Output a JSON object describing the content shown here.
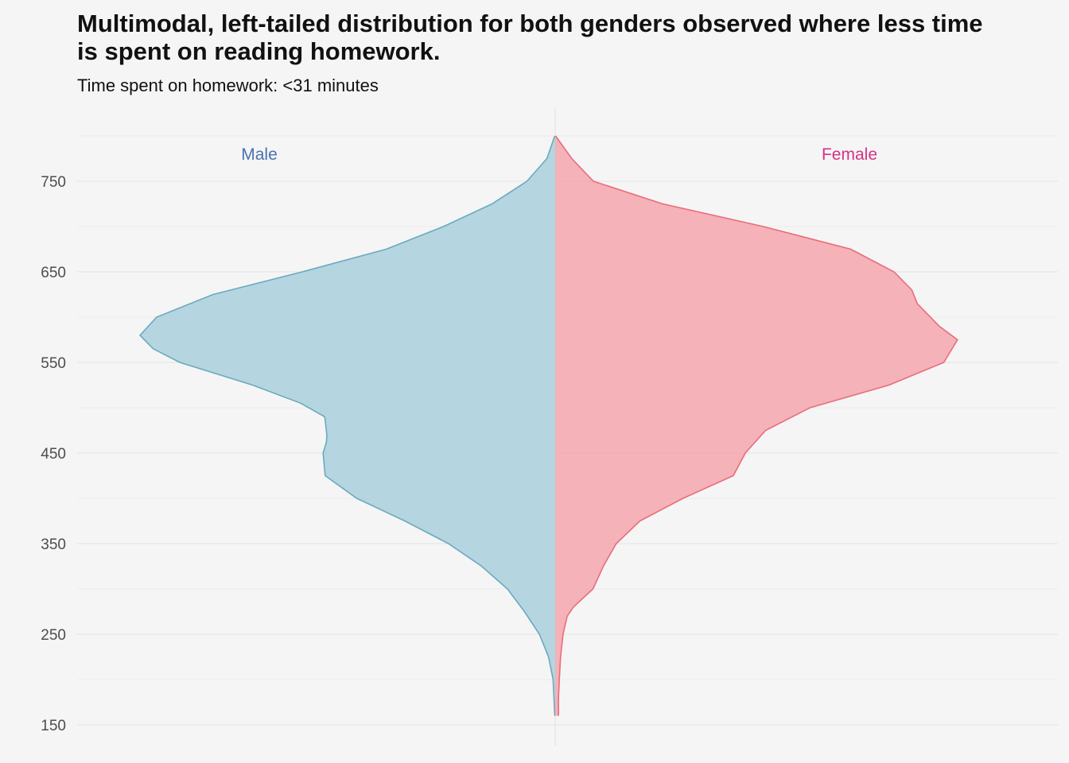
{
  "title": "Multimodal, left-tailed distribution for both genders observed where less time is spent on reading homework.",
  "subtitle": "Time spent on homework: <31 minutes",
  "chart_data": {
    "type": "area",
    "subtype": "mirrored density (violin)",
    "ylim": [
      145,
      802
    ],
    "y_ticks": [
      150,
      250,
      350,
      450,
      550,
      650,
      750
    ],
    "grid": true,
    "density_max": 1.0,
    "series": [
      {
        "name": "Male",
        "side": "left",
        "label_color": "#4a72b0",
        "fill": "#a9cfdc",
        "stroke": "#6aaac0",
        "points": [
          [
            160,
            0.001
          ],
          [
            180,
            0.003
          ],
          [
            200,
            0.005
          ],
          [
            225,
            0.016
          ],
          [
            250,
            0.038
          ],
          [
            275,
            0.074
          ],
          [
            300,
            0.115
          ],
          [
            325,
            0.177
          ],
          [
            350,
            0.257
          ],
          [
            375,
            0.362
          ],
          [
            400,
            0.478
          ],
          [
            425,
            0.554
          ],
          [
            450,
            0.559
          ],
          [
            462,
            0.551
          ],
          [
            470,
            0.55
          ],
          [
            490,
            0.555
          ],
          [
            505,
            0.613
          ],
          [
            525,
            0.729
          ],
          [
            550,
            0.904
          ],
          [
            565,
            0.968
          ],
          [
            580,
            1.0
          ],
          [
            600,
            0.96
          ],
          [
            625,
            0.824
          ],
          [
            650,
            0.609
          ],
          [
            675,
            0.407
          ],
          [
            700,
            0.269
          ],
          [
            725,
            0.152
          ],
          [
            750,
            0.068
          ],
          [
            775,
            0.02
          ],
          [
            800,
            0.001
          ]
        ]
      },
      {
        "name": "Female",
        "side": "right",
        "label_color": "#d63384",
        "fill": "#f4a6ad",
        "stroke": "#e96d7d",
        "points": [
          [
            160,
            0.008
          ],
          [
            180,
            0.008
          ],
          [
            200,
            0.01
          ],
          [
            225,
            0.013
          ],
          [
            250,
            0.019
          ],
          [
            270,
            0.029
          ],
          [
            280,
            0.044
          ],
          [
            300,
            0.091
          ],
          [
            325,
            0.116
          ],
          [
            350,
            0.147
          ],
          [
            375,
            0.204
          ],
          [
            400,
            0.308
          ],
          [
            425,
            0.429
          ],
          [
            450,
            0.458
          ],
          [
            475,
            0.507
          ],
          [
            500,
            0.614
          ],
          [
            525,
            0.804
          ],
          [
            550,
            0.936
          ],
          [
            575,
            0.969
          ],
          [
            590,
            0.925
          ],
          [
            615,
            0.872
          ],
          [
            630,
            0.859
          ],
          [
            650,
            0.816
          ],
          [
            675,
            0.712
          ],
          [
            700,
            0.501
          ],
          [
            725,
            0.259
          ],
          [
            750,
            0.092
          ],
          [
            775,
            0.04
          ],
          [
            800,
            0.001
          ]
        ]
      }
    ]
  }
}
